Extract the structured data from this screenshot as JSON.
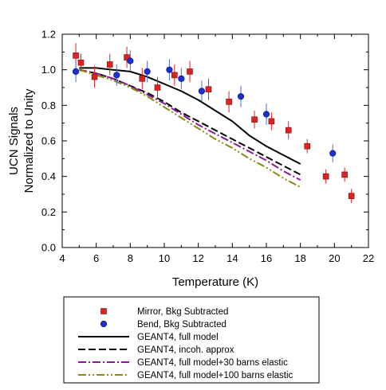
{
  "chart_data": {
    "type": "scatter",
    "title": "",
    "xlabel": "Temperature (K)",
    "ylabel_lines": [
      "UCN Signals",
      "Normalized to Unity"
    ],
    "xlim": [
      4,
      22
    ],
    "ylim": [
      0.0,
      1.2
    ],
    "xticks": [
      "4",
      "6",
      "8",
      "10",
      "12",
      "14",
      "16",
      "18",
      "20",
      "22"
    ],
    "yticks": [
      "0.0",
      "0.2",
      "0.4",
      "0.6",
      "0.8",
      "1.0",
      "1.2"
    ],
    "grid": false,
    "legend_position": "bottom, below plot",
    "series": [
      {
        "name": "Mirror, Bkg Subtracted",
        "kind": "points",
        "marker": "square",
        "color": "#dd2222",
        "errorbar_color": "#dd2222",
        "points": [
          {
            "x": 4.8,
            "y": 1.08,
            "err": 0.07
          },
          {
            "x": 5.1,
            "y": 1.04,
            "err": 0.05
          },
          {
            "x": 5.9,
            "y": 0.96,
            "err": 0.06
          },
          {
            "x": 6.8,
            "y": 1.03,
            "err": 0.06
          },
          {
            "x": 7.8,
            "y": 1.07,
            "err": 0.06
          },
          {
            "x": 8.7,
            "y": 0.95,
            "err": 0.06
          },
          {
            "x": 9.6,
            "y": 0.9,
            "err": 0.06
          },
          {
            "x": 10.6,
            "y": 0.97,
            "err": 0.06
          },
          {
            "x": 11.5,
            "y": 0.99,
            "err": 0.06
          },
          {
            "x": 12.6,
            "y": 0.89,
            "err": 0.06
          },
          {
            "x": 13.8,
            "y": 0.82,
            "err": 0.06
          },
          {
            "x": 15.3,
            "y": 0.72,
            "err": 0.05
          },
          {
            "x": 16.3,
            "y": 0.71,
            "err": 0.05
          },
          {
            "x": 17.3,
            "y": 0.66,
            "err": 0.05
          },
          {
            "x": 18.4,
            "y": 0.57,
            "err": 0.04
          },
          {
            "x": 19.5,
            "y": 0.4,
            "err": 0.04
          },
          {
            "x": 20.6,
            "y": 0.41,
            "err": 0.04
          },
          {
            "x": 21.0,
            "y": 0.29,
            "err": 0.04
          }
        ]
      },
      {
        "name": "Bend, Bkg Subtracted",
        "kind": "points",
        "marker": "circle",
        "color": "#1a2fcc",
        "errorbar_color": "#4a6ad8",
        "points": [
          {
            "x": 4.8,
            "y": 0.99,
            "err": 0.06
          },
          {
            "x": 7.2,
            "y": 0.97,
            "err": 0.06
          },
          {
            "x": 8.0,
            "y": 1.05,
            "err": 0.06
          },
          {
            "x": 9.0,
            "y": 0.99,
            "err": 0.06
          },
          {
            "x": 10.3,
            "y": 1.0,
            "err": 0.06
          },
          {
            "x": 11.0,
            "y": 0.95,
            "err": 0.06
          },
          {
            "x": 12.2,
            "y": 0.88,
            "err": 0.06
          },
          {
            "x": 14.5,
            "y": 0.85,
            "err": 0.06
          },
          {
            "x": 16.0,
            "y": 0.75,
            "err": 0.06
          },
          {
            "x": 19.9,
            "y": 0.53,
            "err": 0.05
          }
        ]
      },
      {
        "name": "GEANT4, full model",
        "kind": "line",
        "color": "#000000",
        "dash": "",
        "points": [
          [
            5,
            1.01
          ],
          [
            6,
            1.01
          ],
          [
            7,
            1.0
          ],
          [
            8,
            0.99
          ],
          [
            9,
            0.96
          ],
          [
            10,
            0.92
          ],
          [
            11,
            0.88
          ],
          [
            12,
            0.83
          ],
          [
            13,
            0.77
          ],
          [
            14,
            0.71
          ],
          [
            15,
            0.63
          ],
          [
            16,
            0.57
          ],
          [
            17,
            0.52
          ],
          [
            18,
            0.47
          ]
        ]
      },
      {
        "name": "GEANT4, incoh. approx",
        "kind": "line",
        "color": "#000000",
        "dash": "9,4",
        "points": [
          [
            5,
            1.0
          ],
          [
            6,
            0.98
          ],
          [
            7,
            0.95
          ],
          [
            8,
            0.91
          ],
          [
            9,
            0.87
          ],
          [
            10,
            0.82
          ],
          [
            11,
            0.76
          ],
          [
            12,
            0.71
          ],
          [
            13,
            0.66
          ],
          [
            14,
            0.61
          ],
          [
            15,
            0.56
          ],
          [
            16,
            0.51
          ],
          [
            17,
            0.46
          ],
          [
            18,
            0.41
          ]
        ]
      },
      {
        "name": "GEANT4, full model+30 barns elastic",
        "kind": "line",
        "color": "#8b1a9b",
        "dash": "10,3,2,3",
        "points": [
          [
            5,
            1.0
          ],
          [
            6,
            0.98
          ],
          [
            7,
            0.95
          ],
          [
            8,
            0.91
          ],
          [
            9,
            0.86
          ],
          [
            10,
            0.81
          ],
          [
            11,
            0.75
          ],
          [
            12,
            0.69
          ],
          [
            13,
            0.64
          ],
          [
            14,
            0.59
          ],
          [
            15,
            0.54
          ],
          [
            16,
            0.49
          ],
          [
            17,
            0.43
          ],
          [
            18,
            0.38
          ]
        ]
      },
      {
        "name": "GEANT4, full model+100 barns elastic",
        "kind": "line",
        "color": "#8a8a10",
        "dash": "10,3,2,3,2,3",
        "points": [
          [
            5,
            1.0
          ],
          [
            6,
            0.97
          ],
          [
            7,
            0.94
          ],
          [
            8,
            0.9
          ],
          [
            9,
            0.85
          ],
          [
            10,
            0.79
          ],
          [
            11,
            0.73
          ],
          [
            12,
            0.67
          ],
          [
            13,
            0.61
          ],
          [
            14,
            0.56
          ],
          [
            15,
            0.5
          ],
          [
            16,
            0.45
          ],
          [
            17,
            0.39
          ],
          [
            18,
            0.34
          ]
        ]
      }
    ]
  }
}
